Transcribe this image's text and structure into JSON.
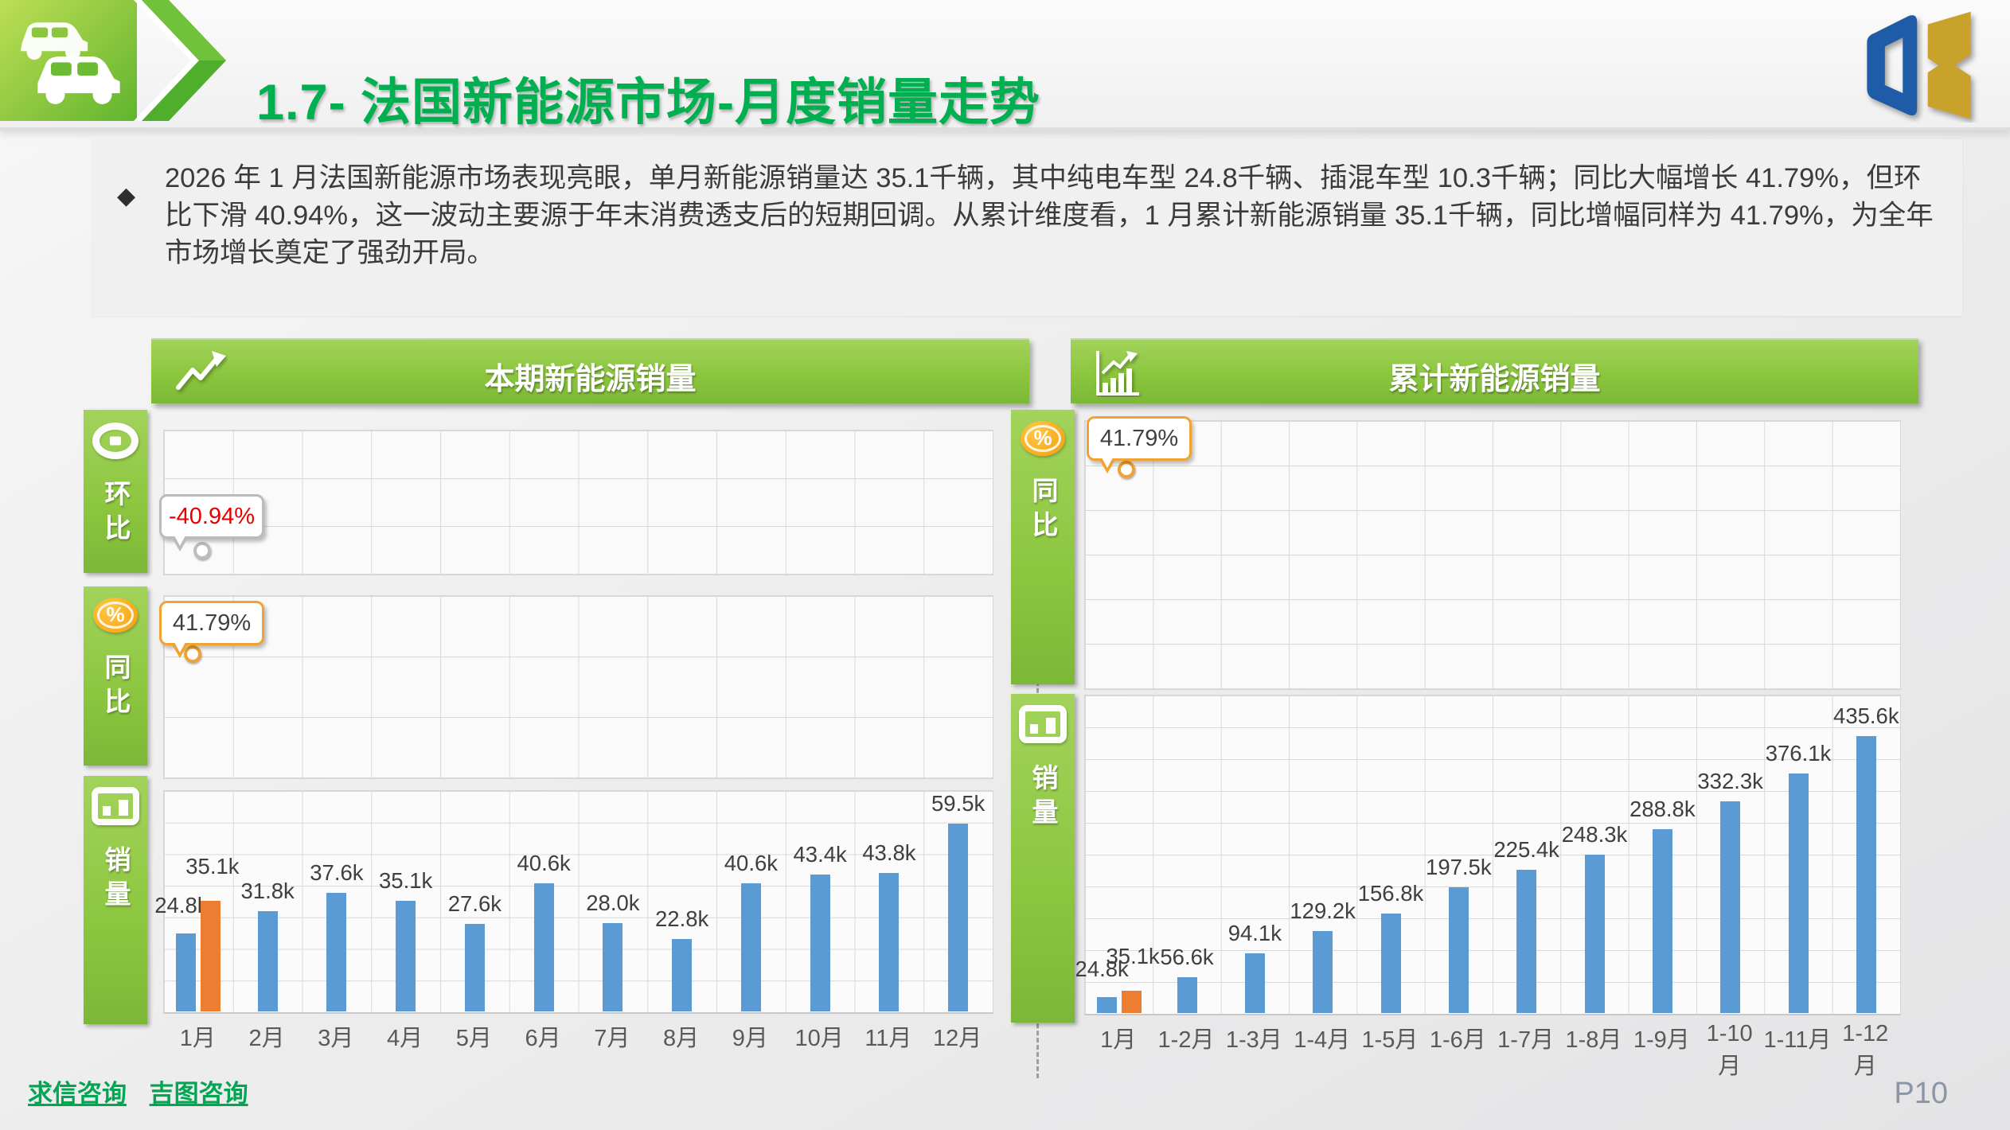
{
  "slide": {
    "title": "1.7- 法国新能源市场-月度销量走势",
    "page_number": "P10",
    "bullet": "◆",
    "summary": "2026 年 1 月法国新能源市场表现亮眼，单月新能源销量达 35.1千辆，其中纯电车型 24.8千辆、插混车型 10.3千辆；同比大幅增长 41.79%，但环比下滑 40.94%，这一波动主要源于年末消费透支后的短期回调。从累计维度看，1 月累计新能源销量 35.1千辆，同比增幅同样为 41.79%，为全年市场增长奠定了强劲开局。",
    "footer_links": [
      "求信咨询",
      "吉图咨询"
    ]
  },
  "panels": {
    "left": {
      "title": "本期新能源销量",
      "tab_mom": "环比",
      "tab_yoy": "同比",
      "tab_sales": "销量",
      "callout_mom": "-40.94%",
      "callout_yoy": "41.79%"
    },
    "right": {
      "title": "累计新能源销量",
      "tab_yoy": "同比",
      "tab_sales": "销量",
      "callout_yoy": "41.79%"
    }
  },
  "colors": {
    "accent_green": "#8CC63F",
    "title_green": "#00B050",
    "bar_blue": "#5B9BD5",
    "bar_orange": "#ED7D31",
    "callout_red_text": "#E60000",
    "callout_dark_text": "#404040",
    "callout_orange_border": "#F0A232",
    "callout_gray_border": "#BBBBBB"
  },
  "chart_data": [
    {
      "type": "bar",
      "title": "本期新能源销量",
      "unit": "k",
      "categories": [
        "1月",
        "2月",
        "3月",
        "4月",
        "5月",
        "6月",
        "7月",
        "8月",
        "9月",
        "10月",
        "11月",
        "12月"
      ],
      "series": [
        {
          "name": "blue",
          "color": "#5B9BD5",
          "values": [
            24.8,
            31.8,
            37.6,
            35.1,
            27.6,
            40.6,
            28.0,
            22.8,
            40.6,
            43.4,
            43.8,
            59.5
          ]
        },
        {
          "name": "orange",
          "color": "#ED7D31",
          "values": [
            35.1,
            null,
            null,
            null,
            null,
            null,
            null,
            null,
            null,
            null,
            null,
            null
          ]
        }
      ],
      "ylim": [
        0,
        70
      ],
      "gridline_step": 10,
      "grid_on": true,
      "legend": "none",
      "annotations": {
        "mom_callout": "-40.94%",
        "yoy_callout": "41.79%"
      }
    },
    {
      "type": "bar",
      "title": "累计新能源销量",
      "unit": "k",
      "categories": [
        "1月",
        "1-2月",
        "1-3月",
        "1-4月",
        "1-5月",
        "1-6月",
        "1-7月",
        "1-8月",
        "1-9月",
        "1-10月",
        "1-11月",
        "1-12月"
      ],
      "series": [
        {
          "name": "blue",
          "color": "#5B9BD5",
          "values": [
            24.8,
            56.6,
            94.1,
            129.2,
            156.8,
            197.5,
            225.4,
            248.3,
            288.8,
            332.3,
            376.1,
            435.6
          ]
        },
        {
          "name": "orange",
          "color": "#ED7D31",
          "values": [
            35.1,
            null,
            null,
            null,
            null,
            null,
            null,
            null,
            null,
            null,
            null,
            null
          ]
        }
      ],
      "ylim": [
        0,
        500
      ],
      "gridline_step": 50,
      "grid_on": true,
      "legend": "none",
      "annotations": {
        "yoy_callout": "41.79%"
      }
    }
  ]
}
